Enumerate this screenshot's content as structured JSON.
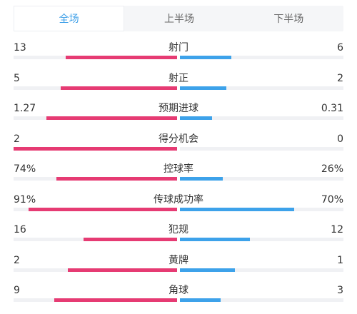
{
  "colors": {
    "home": "#e63b73",
    "away": "#3da2ea",
    "track": "#f0f1f4",
    "active_tab": "#3fa0e8"
  },
  "tabs": [
    {
      "label": "全场",
      "active": true
    },
    {
      "label": "上半场",
      "active": false
    },
    {
      "label": "下半场",
      "active": false
    }
  ],
  "stats": [
    {
      "label": "射门",
      "home": "13",
      "away": "6",
      "home_fill": 0.68,
      "away_fill": 0.315
    },
    {
      "label": "射正",
      "home": "5",
      "away": "2",
      "home_fill": 0.71,
      "away_fill": 0.285
    },
    {
      "label": "预期进球",
      "home": "1.27",
      "away": "0.31",
      "home_fill": 0.8,
      "away_fill": 0.195
    },
    {
      "label": "得分机会",
      "home": "2",
      "away": "0",
      "home_fill": 1.0,
      "away_fill": 0.0
    },
    {
      "label": "控球率",
      "home": "74%",
      "away": "26%",
      "home_fill": 0.74,
      "away_fill": 0.26
    },
    {
      "label": "传球成功率",
      "home": "91%",
      "away": "70%",
      "home_fill": 0.91,
      "away_fill": 0.7
    },
    {
      "label": "犯规",
      "home": "16",
      "away": "12",
      "home_fill": 0.57,
      "away_fill": 0.43
    },
    {
      "label": "黄牌",
      "home": "2",
      "away": "1",
      "home_fill": 0.67,
      "away_fill": 0.335
    },
    {
      "label": "角球",
      "home": "9",
      "away": "3",
      "home_fill": 0.75,
      "away_fill": 0.25
    }
  ]
}
